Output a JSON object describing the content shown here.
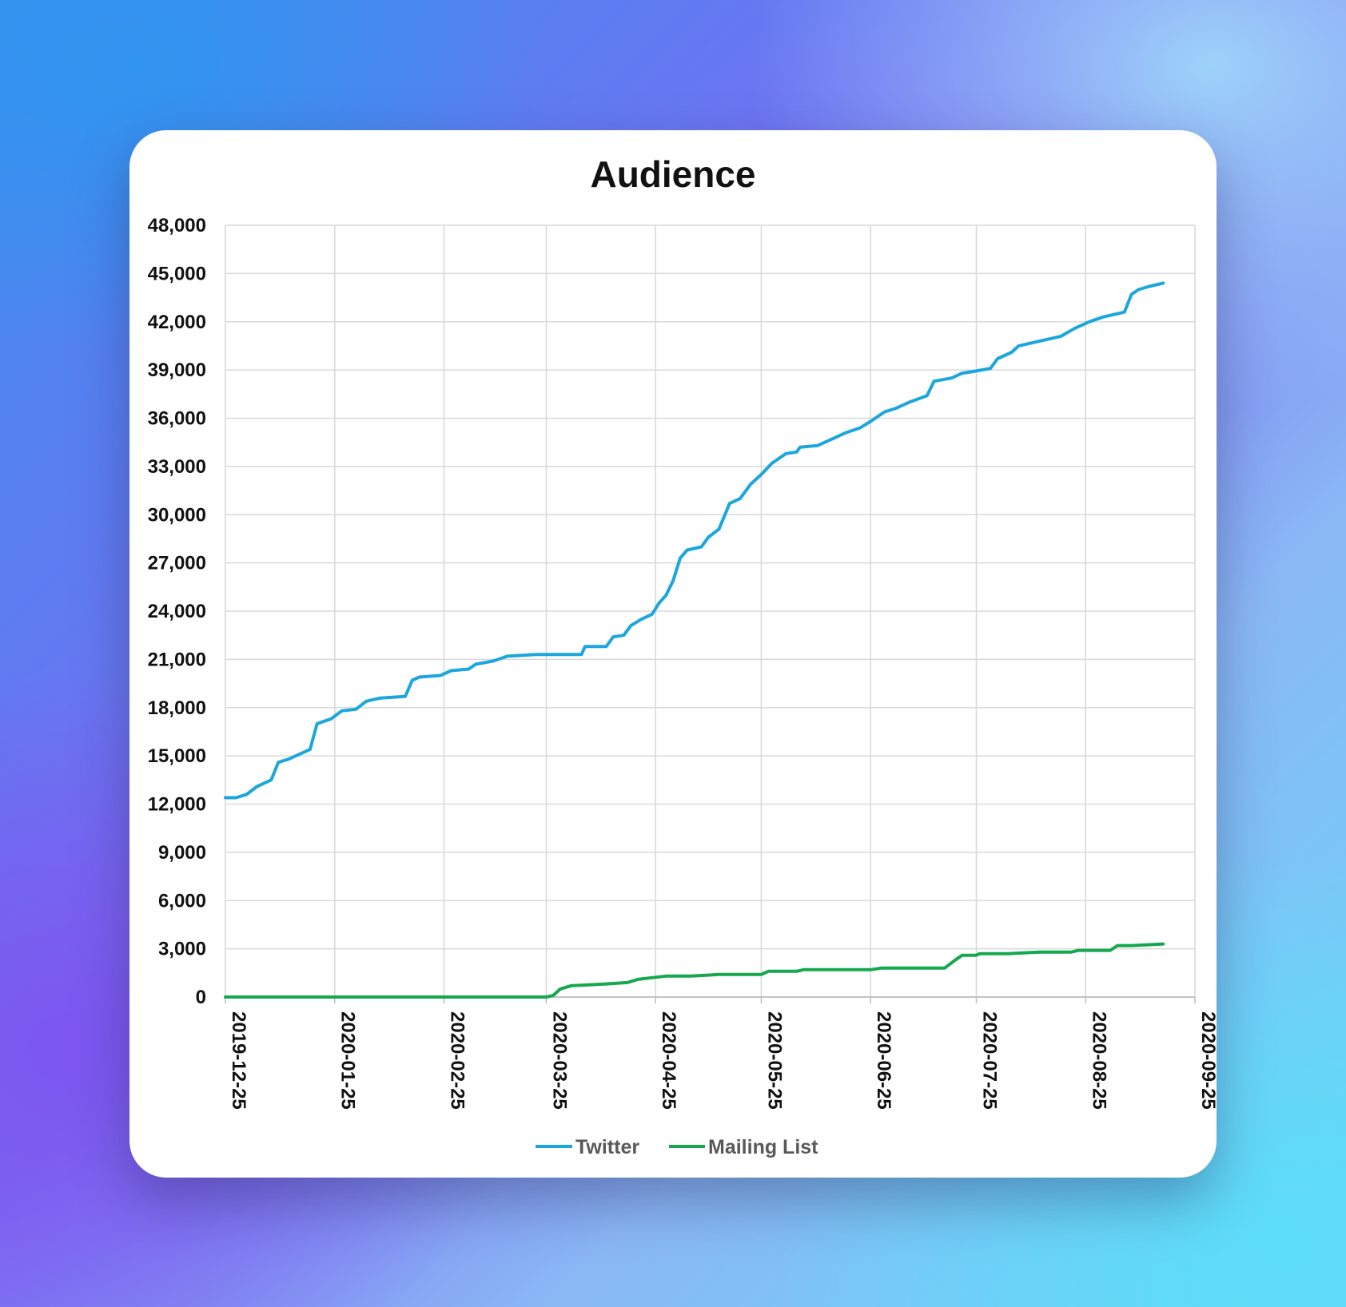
{
  "colors": {
    "twitter": "#1BA6DE",
    "mailing_list": "#16A84F",
    "card_background": "#ffffff",
    "gridline": "#d9d9d9"
  },
  "chart_data": {
    "type": "line",
    "title": "Audience",
    "xlabel": "",
    "ylabel": "",
    "ylim": [
      0,
      48000
    ],
    "yticks": [
      "0",
      "3,000",
      "6,000",
      "9,000",
      "12,000",
      "15,000",
      "18,000",
      "21,000",
      "24,000",
      "27,000",
      "30,000",
      "33,000",
      "36,000",
      "39,000",
      "42,000",
      "45,000",
      "48,000"
    ],
    "xlim": [
      "2019-12-25",
      "2020-09-25"
    ],
    "xticks": [
      "2019-12-25",
      "2020-01-25",
      "2020-02-25",
      "2020-03-25",
      "2020-04-25",
      "2020-05-25",
      "2020-06-25",
      "2020-07-25",
      "2020-08-25",
      "2020-09-25"
    ],
    "grid": true,
    "legend": "bottom",
    "series": [
      {
        "name": "Twitter",
        "color": "#1BA6DE",
        "points": [
          [
            "2019-12-25",
            12400
          ],
          [
            "2019-12-28",
            12400
          ],
          [
            "2019-12-31",
            12600
          ],
          [
            "2020-01-03",
            13100
          ],
          [
            "2020-01-07",
            13500
          ],
          [
            "2020-01-09",
            14600
          ],
          [
            "2020-01-12",
            14800
          ],
          [
            "2020-01-15",
            15100
          ],
          [
            "2020-01-18",
            15400
          ],
          [
            "2020-01-20",
            17000
          ],
          [
            "2020-01-24",
            17300
          ],
          [
            "2020-01-27",
            17800
          ],
          [
            "2020-01-31",
            17900
          ],
          [
            "2020-02-03",
            18400
          ],
          [
            "2020-02-07",
            18600
          ],
          [
            "2020-02-14",
            18700
          ],
          [
            "2020-02-16",
            19700
          ],
          [
            "2020-02-18",
            19900
          ],
          [
            "2020-02-24",
            20000
          ],
          [
            "2020-02-27",
            20300
          ],
          [
            "2020-03-03",
            20400
          ],
          [
            "2020-03-05",
            20700
          ],
          [
            "2020-03-10",
            20900
          ],
          [
            "2020-03-14",
            21200
          ],
          [
            "2020-03-22",
            21300
          ],
          [
            "2020-03-29",
            21300
          ],
          [
            "2020-04-04",
            21300
          ],
          [
            "2020-04-05",
            21800
          ],
          [
            "2020-04-11",
            21800
          ],
          [
            "2020-04-13",
            22400
          ],
          [
            "2020-04-16",
            22500
          ],
          [
            "2020-04-18",
            23100
          ],
          [
            "2020-04-21",
            23500
          ],
          [
            "2020-04-24",
            23800
          ],
          [
            "2020-04-26",
            24500
          ],
          [
            "2020-04-28",
            25000
          ],
          [
            "2020-04-30",
            25900
          ],
          [
            "2020-05-02",
            27300
          ],
          [
            "2020-05-04",
            27800
          ],
          [
            "2020-05-08",
            28000
          ],
          [
            "2020-05-10",
            28600
          ],
          [
            "2020-05-13",
            29100
          ],
          [
            "2020-05-16",
            30700
          ],
          [
            "2020-05-19",
            31000
          ],
          [
            "2020-05-22",
            31900
          ],
          [
            "2020-05-25",
            32500
          ],
          [
            "2020-05-28",
            33200
          ],
          [
            "2020-06-01",
            33800
          ],
          [
            "2020-06-04",
            33900
          ],
          [
            "2020-06-05",
            34200
          ],
          [
            "2020-06-10",
            34300
          ],
          [
            "2020-06-14",
            34700
          ],
          [
            "2020-06-18",
            35100
          ],
          [
            "2020-06-22",
            35400
          ],
          [
            "2020-06-25",
            35800
          ],
          [
            "2020-06-29",
            36400
          ],
          [
            "2020-07-02",
            36600
          ],
          [
            "2020-07-06",
            37000
          ],
          [
            "2020-07-11",
            37400
          ],
          [
            "2020-07-13",
            38300
          ],
          [
            "2020-07-18",
            38500
          ],
          [
            "2020-07-21",
            38800
          ],
          [
            "2020-07-24",
            38900
          ],
          [
            "2020-07-29",
            39100
          ],
          [
            "2020-07-31",
            39700
          ],
          [
            "2020-08-04",
            40100
          ],
          [
            "2020-08-06",
            40500
          ],
          [
            "2020-08-10",
            40700
          ],
          [
            "2020-08-14",
            40900
          ],
          [
            "2020-08-18",
            41100
          ],
          [
            "2020-08-22",
            41600
          ],
          [
            "2020-08-26",
            42000
          ],
          [
            "2020-08-30",
            42300
          ],
          [
            "2020-09-05",
            42600
          ],
          [
            "2020-09-07",
            43700
          ],
          [
            "2020-09-09",
            44000
          ],
          [
            "2020-09-12",
            44200
          ],
          [
            "2020-09-16",
            44400
          ]
        ]
      },
      {
        "name": "Mailing List",
        "color": "#16A84F",
        "points": [
          [
            "2019-12-25",
            0
          ],
          [
            "2020-01-25",
            0
          ],
          [
            "2020-03-25",
            0
          ],
          [
            "2020-03-27",
            100
          ],
          [
            "2020-03-29",
            500
          ],
          [
            "2020-04-01",
            700
          ],
          [
            "2020-04-10",
            800
          ],
          [
            "2020-04-17",
            900
          ],
          [
            "2020-04-20",
            1100
          ],
          [
            "2020-04-24",
            1200
          ],
          [
            "2020-04-28",
            1300
          ],
          [
            "2020-05-05",
            1300
          ],
          [
            "2020-05-13",
            1400
          ],
          [
            "2020-05-25",
            1400
          ],
          [
            "2020-05-27",
            1600
          ],
          [
            "2020-06-04",
            1600
          ],
          [
            "2020-06-06",
            1700
          ],
          [
            "2020-06-25",
            1700
          ],
          [
            "2020-06-28",
            1800
          ],
          [
            "2020-07-16",
            1800
          ],
          [
            "2020-07-19",
            2300
          ],
          [
            "2020-07-21",
            2600
          ],
          [
            "2020-07-25",
            2600
          ],
          [
            "2020-07-26",
            2700
          ],
          [
            "2020-08-03",
            2700
          ],
          [
            "2020-08-12",
            2800
          ],
          [
            "2020-08-21",
            2800
          ],
          [
            "2020-08-23",
            2900
          ],
          [
            "2020-09-01",
            2900
          ],
          [
            "2020-09-03",
            3200
          ],
          [
            "2020-09-07",
            3200
          ],
          [
            "2020-09-16",
            3300
          ]
        ]
      }
    ]
  }
}
